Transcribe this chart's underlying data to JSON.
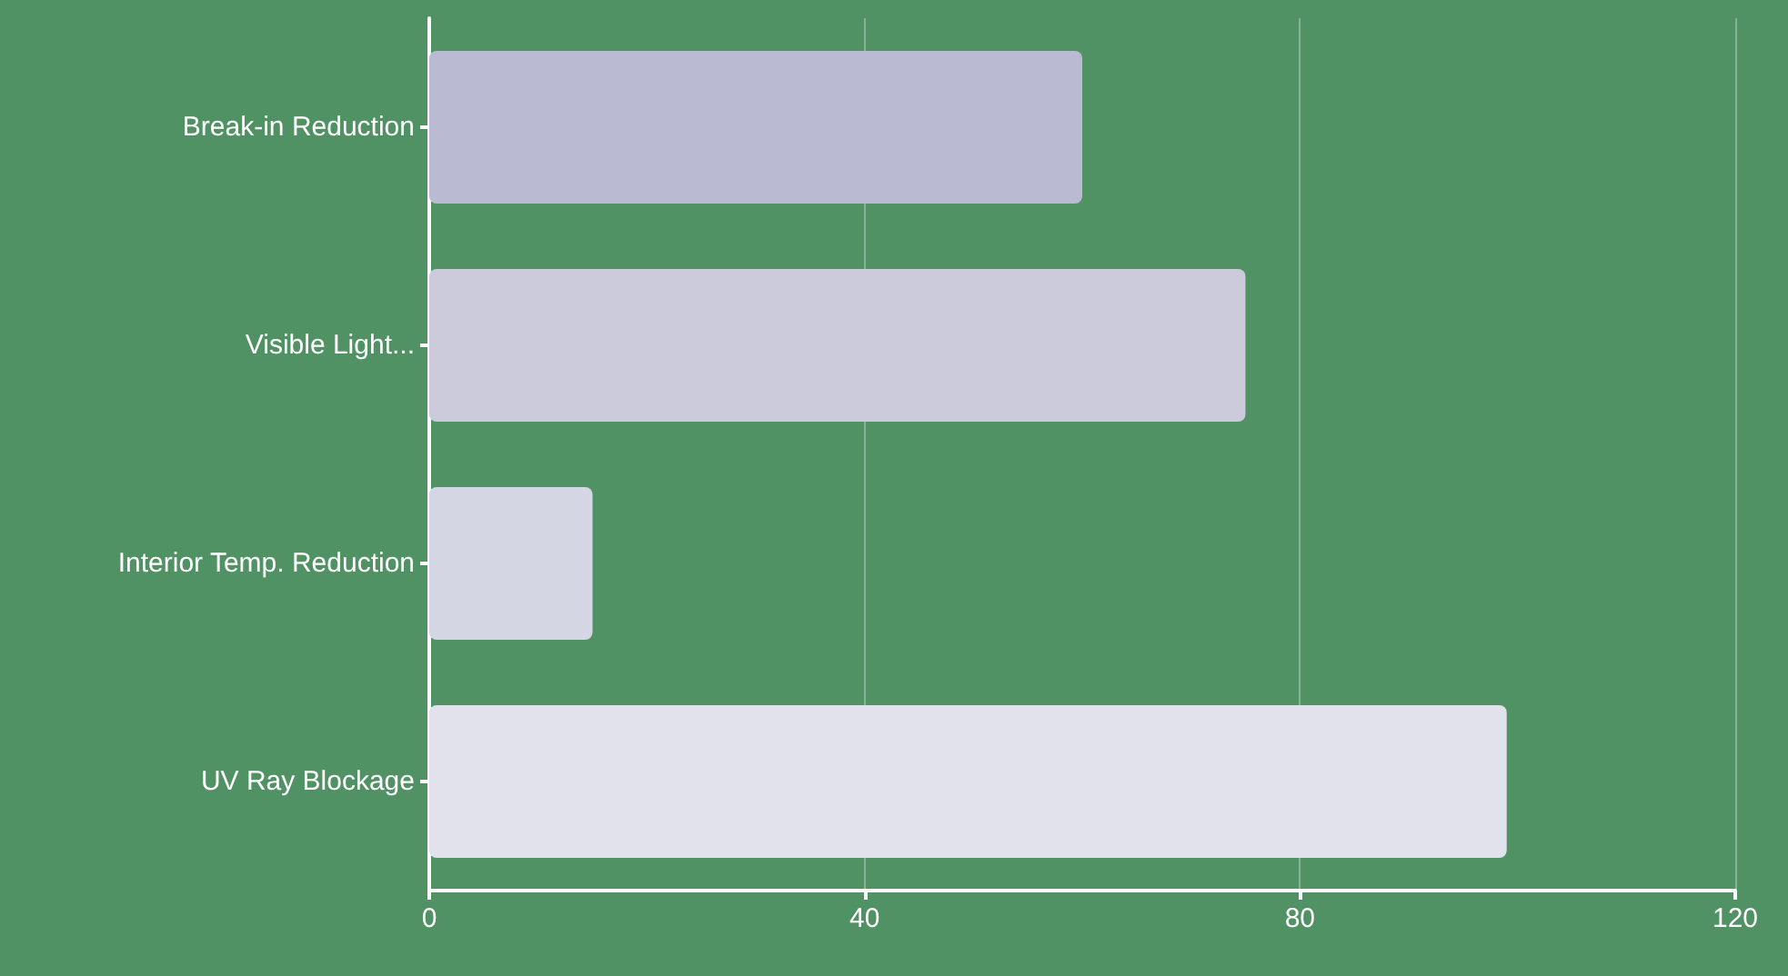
{
  "chart_data": {
    "type": "bar",
    "orientation": "horizontal",
    "categories": [
      "Break-in Reduction",
      "Visible Light...",
      "Interior Temp. Reduction",
      "UV Ray Blockage"
    ],
    "values": [
      60,
      75,
      15,
      99
    ],
    "colors": [
      "#babbd2",
      "#cacadb",
      "#d5d6e3",
      "#e1e2ec"
    ],
    "xlim": [
      0,
      120
    ],
    "xticks": [
      0,
      40,
      80,
      120
    ],
    "grid": "x"
  }
}
